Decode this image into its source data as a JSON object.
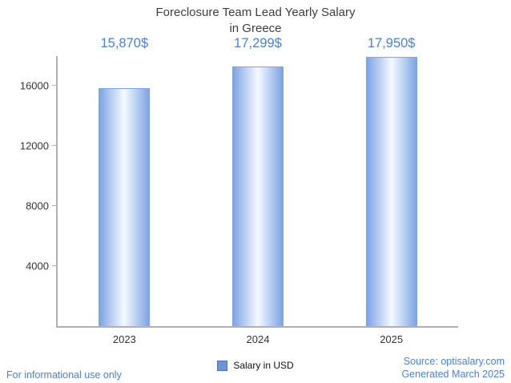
{
  "title": {
    "line1": "Foreclosure Team Lead Yearly Salary",
    "line2": "in Greece"
  },
  "chart_data": {
    "type": "bar",
    "title": "Foreclosure Team Lead Yearly Salary in Greece",
    "categories": [
      "2023",
      "2024",
      "2025"
    ],
    "series": [
      {
        "name": "Salary in USD",
        "values": [
          15870,
          17299,
          17950
        ]
      }
    ],
    "value_labels": [
      "15,870$",
      "17,299$",
      "17,950$"
    ],
    "xlabel": "",
    "ylabel": "",
    "ylim": [
      0,
      18000
    ],
    "yticks": [
      4000,
      8000,
      12000,
      16000
    ],
    "grid": false,
    "legend_position": "bottom"
  },
  "legend": {
    "label": "Salary in USD"
  },
  "footer": {
    "disclaimer": "For informational use only",
    "source": "Source: optisalary.com",
    "generated": "Generated March 2025"
  },
  "colors": {
    "accent": "#4a7fdb",
    "bar_edge": "#7da4e3",
    "bar_center": "#f5faff",
    "legend_swatch": "#6d93d8",
    "axis": "#b0b0b0",
    "text": "#3d3d3d"
  }
}
